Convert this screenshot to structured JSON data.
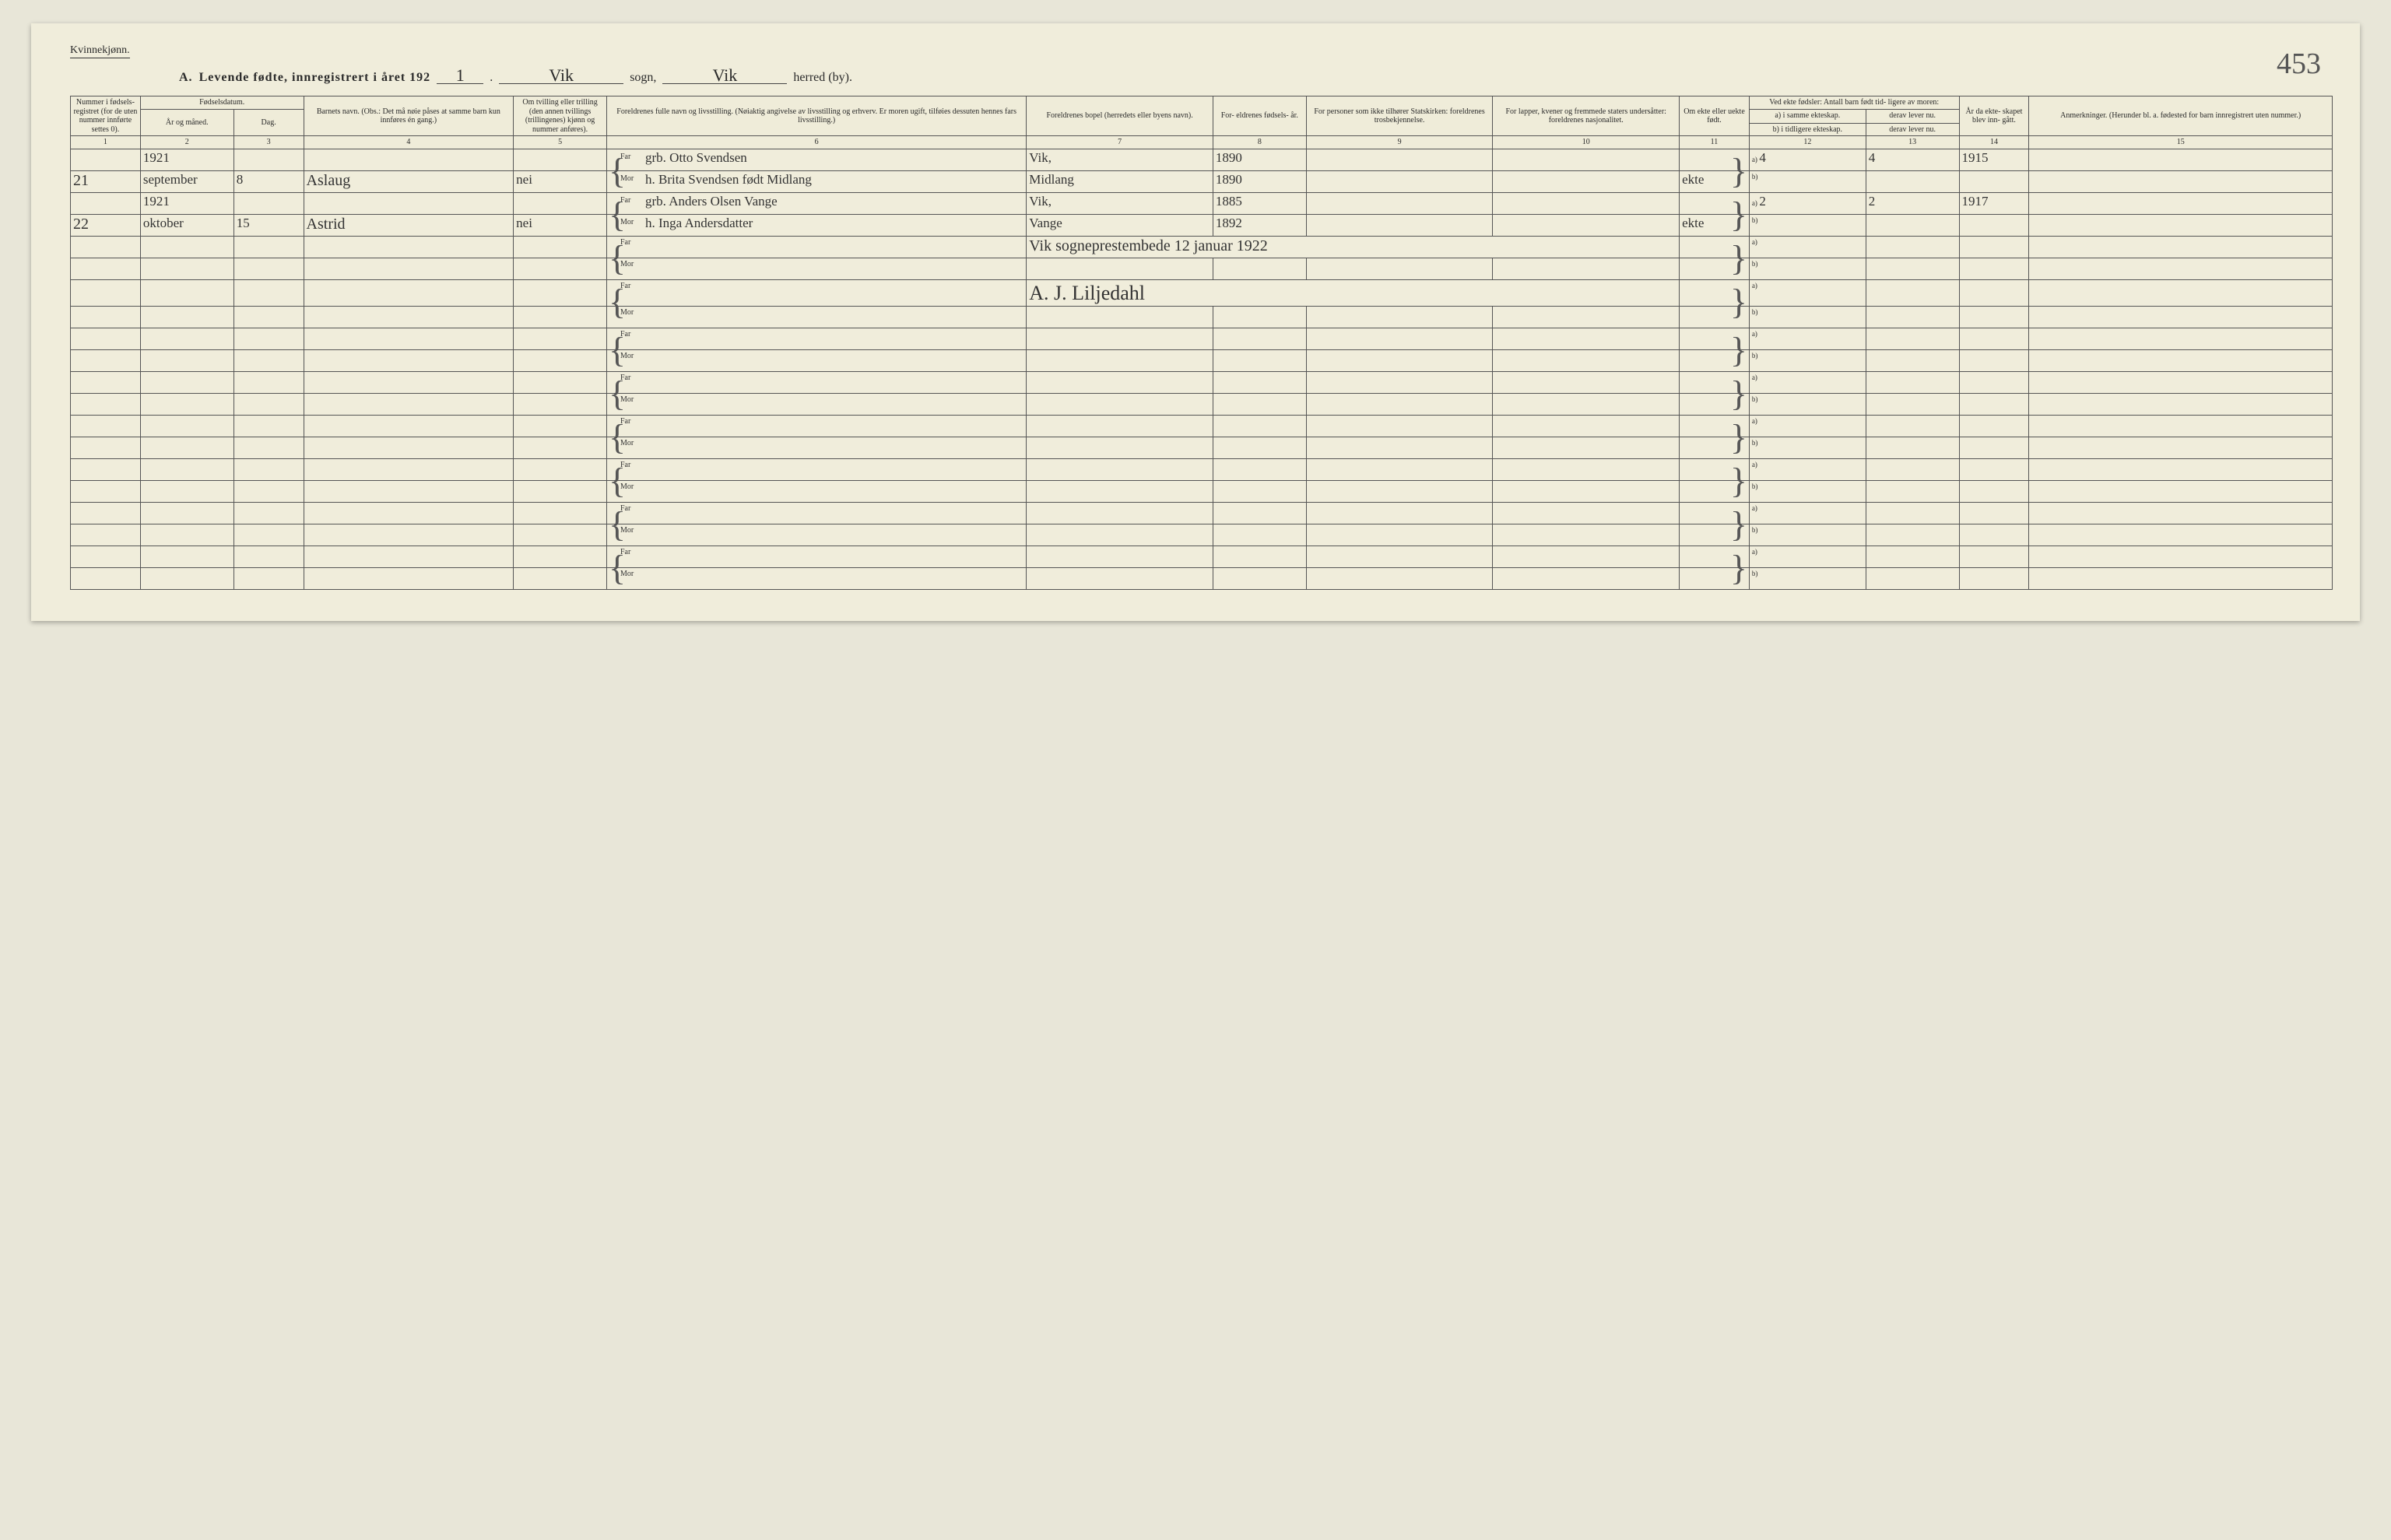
{
  "page_number_handwritten": "453",
  "gender_label": "Kvinnekjønn.",
  "title": {
    "prefix": "A.",
    "text1": "Levende fødte, innregistrert i året 192",
    "year_suffix": "1",
    "period": ".",
    "sogn_value": "Vik",
    "sogn_label": "sogn,",
    "herred_value": "Vik",
    "herred_label": "herred (by)."
  },
  "headers": {
    "c1": "Nummer i fødsels- registret (for de uten nummer innførte settes 0).",
    "c2_top": "Fødselsdatum.",
    "c2": "År og måned.",
    "c3": "Dag.",
    "c4": "Barnets navn.\n(Obs.: Det må nøie påses at samme barn kun innføres én gang.)",
    "c5": "Om tvilling eller trilling (den annen tvillings (trillingenes) kjønn og nummer anføres).",
    "c6": "Foreldrenes fulle navn og livsstilling.\n(Nøiaktig angivelse av livsstilling og erhverv. Er moren ugift, tilføies dessuten hennes fars livsstilling.)",
    "c7": "Foreldrenes bopel (herredets eller byens navn).",
    "c8": "For- eldrenes fødsels- år.",
    "c9": "For personer som ikke tilhører Statskirken: foreldrenes trosbekjennelse.",
    "c10": "For lapper, kvener og fremmede staters undersåtter: foreldrenes nasjonalitet.",
    "c11": "Om ekte eller uekte født.",
    "c12_top": "Ved ekte fødsler:\nAntall barn født tid- ligere av moren:",
    "c12a": "a) i samme ekteskap.",
    "c12b": "b) i tidligere ekteskap.",
    "c13a": "derav lever nu.",
    "c13b": "derav lever nu.",
    "c14": "År da ekte- skapet blev inn- gått.",
    "c15": "Anmerkninger.\n(Herunder bl. a. fødested for barn innregistrert uten nummer.)",
    "far": "Far",
    "mor": "Mor",
    "ab_a": "a)",
    "ab_b": "b)"
  },
  "col_numbers": [
    "1",
    "2",
    "3",
    "4",
    "5",
    "6",
    "7",
    "8",
    "9",
    "10",
    "11",
    "12",
    "13",
    "14",
    "15"
  ],
  "rows": [
    {
      "num": "21",
      "year": "1921",
      "month": "september",
      "day": "8",
      "name": "Aslaug",
      "twin": "nei",
      "far": "grb. Otto Svendsen",
      "mor": "h. Brita Svendsen født Midlang",
      "bopel_top": "Vik,",
      "bopel_bot": "Midlang",
      "far_year": "1890",
      "mor_year": "1890",
      "ekte": "ekte",
      "a_same": "4",
      "a_live": "4",
      "marriage_year": "1915"
    },
    {
      "num": "22",
      "year": "1921",
      "month": "oktober",
      "day": "15",
      "name": "Astrid",
      "twin": "nei",
      "far": "grb. Anders Olsen Vange",
      "mor": "h. Inga Andersdatter",
      "bopel_top": "Vik,",
      "bopel_bot": "Vange",
      "far_year": "1885",
      "mor_year": "1892",
      "ekte": "ekte",
      "a_same": "2",
      "a_live": "2",
      "marriage_year": "1917"
    }
  ],
  "closing_note": "Vik sogneprestembede 12 januar 1922",
  "signature": "A. J. Liljedahl",
  "colors": {
    "paper": "#f0eddb",
    "background": "#e8e6d8",
    "ink": "#2a2a2a",
    "rule": "#555555"
  },
  "empty_row_count": 6
}
